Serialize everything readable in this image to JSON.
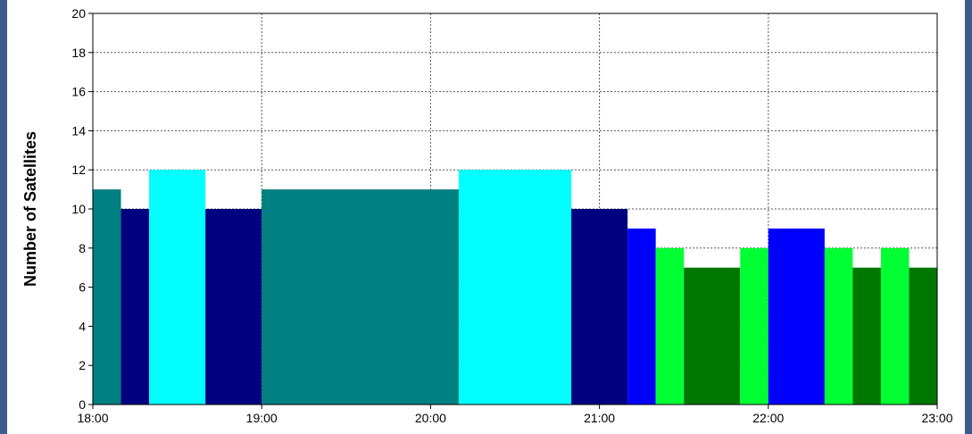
{
  "chart_data": {
    "type": "bar",
    "xlabel": "",
    "ylabel": "Number of Satellites",
    "ylim": [
      0,
      20
    ],
    "xlim": [
      "18:00",
      "23:00"
    ],
    "yticks": [
      0,
      2,
      4,
      6,
      8,
      10,
      12,
      14,
      16,
      18,
      20
    ],
    "xticks": [
      "18:00",
      "19:00",
      "20:00",
      "21:00",
      "22:00",
      "23:00"
    ],
    "grid": true,
    "bars": [
      {
        "start": "18:00",
        "end": "18:10",
        "value": 11,
        "color": "#008080"
      },
      {
        "start": "18:10",
        "end": "18:20",
        "value": 10,
        "color": "#000080"
      },
      {
        "start": "18:20",
        "end": "18:40",
        "value": 12,
        "color": "#00ffff"
      },
      {
        "start": "18:40",
        "end": "19:00",
        "value": 10,
        "color": "#000080"
      },
      {
        "start": "19:00",
        "end": "20:10",
        "value": 11,
        "color": "#008080"
      },
      {
        "start": "20:10",
        "end": "20:50",
        "value": 12,
        "color": "#00ffff"
      },
      {
        "start": "20:50",
        "end": "21:10",
        "value": 10,
        "color": "#000080"
      },
      {
        "start": "21:10",
        "end": "21:20",
        "value": 9,
        "color": "#0000ff"
      },
      {
        "start": "21:20",
        "end": "21:30",
        "value": 8,
        "color": "#00ff33"
      },
      {
        "start": "21:30",
        "end": "21:50",
        "value": 7,
        "color": "#007700"
      },
      {
        "start": "21:50",
        "end": "22:00",
        "value": 8,
        "color": "#00ff33"
      },
      {
        "start": "22:00",
        "end": "22:20",
        "value": 9,
        "color": "#0000ff"
      },
      {
        "start": "22:20",
        "end": "22:30",
        "value": 8,
        "color": "#00ff33"
      },
      {
        "start": "22:30",
        "end": "22:40",
        "value": 7,
        "color": "#007700"
      },
      {
        "start": "22:40",
        "end": "22:50",
        "value": 8,
        "color": "#00ff33"
      },
      {
        "start": "22:50",
        "end": "23:00",
        "value": 7,
        "color": "#007700"
      }
    ]
  }
}
